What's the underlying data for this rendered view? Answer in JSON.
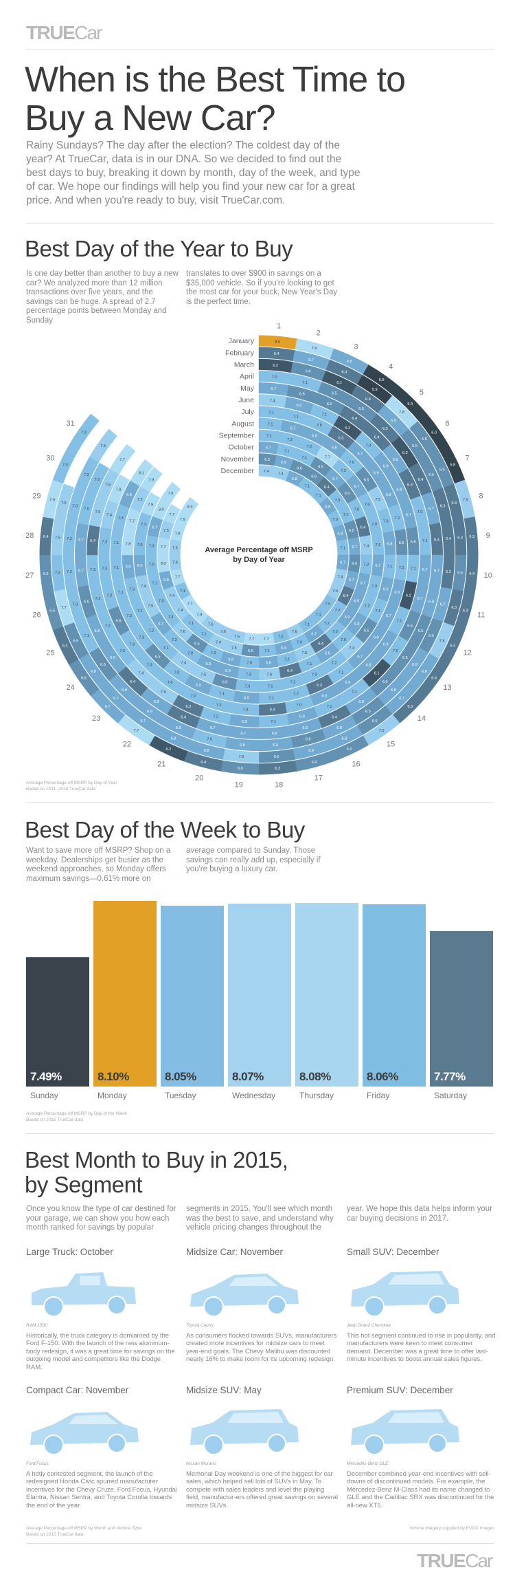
{
  "header": {
    "logo_bold": "TRUE",
    "logo_light": "Car",
    "title_line1": "When is the Best Time to",
    "title_line2": "Buy a New Car?",
    "intro": "Rainy Sundays? The day after the election? The coldest day of the year? At TrueCar, data is in our DNA. So we decided to find out the best days to buy, breaking it down by month, day of the week, and type of car. We hope our findings will help you find your new car for a great price. And when you're ready to buy, visit TrueCar.com."
  },
  "year_section": {
    "heading": "Best Day of the Year to Buy",
    "col1": "Is one day better than another to buy a new car? We analyzed more than 12 million transactions over five years, and the savings can be huge. A spread of 2.7 percentage points between Monday and Sunday",
    "col2": "translates to over $900 in savings on a $35,000 vehicle. So if you're looking to get the most car for your buck, New Year's Day is the perfect time.",
    "footnote1": "Average Percentage off MSRP by Day of Year",
    "footnote2": "Based on 2011–2015 TrueCar data"
  },
  "week_section": {
    "heading": "Best Day of the Week to Buy",
    "col1": "Want to save more off MSRP? Shop on a weekday. Dealerships get busier as the weekend approaches, so Monday offers maximum savings—0.61% more on",
    "col2": "average compared to Sunday. Those savings can really add up, especially if you're buying a luxury car.",
    "footnote1": "Average Percentage off MSRP by Day of the Week",
    "footnote2": "Based on 2015 TrueCar data"
  },
  "chart_data": [
    {
      "type": "heatmap",
      "layout": "radial",
      "title_line1": "Average Percentage off MSRP",
      "title_line2": "by Day of Year",
      "days": [
        1,
        2,
        3,
        4,
        5,
        6,
        7,
        8,
        9,
        10,
        11,
        12,
        13,
        14,
        15,
        16,
        17,
        18,
        19,
        20,
        21,
        22,
        23,
        24,
        25,
        26,
        27,
        28,
        29,
        30,
        31
      ],
      "months": [
        {
          "name": "January",
          "values": [
            8.5,
            7.9,
            6.8,
            5.9,
            5.9,
            6.0,
            5.8,
            7.5,
            6.3,
            6.4,
            6.3,
            6.3,
            6.4,
            6.3,
            7.5,
            6.5,
            6.6,
            6.3,
            6.6,
            6.4,
            6.2,
            7.7,
            6.7,
            6.6,
            6.4,
            6.5,
            6.6,
            6.4,
            7.9,
            7.0,
            7.3
          ]
        },
        {
          "name": "February",
          "values": [
            6.4,
            6.7,
            6.4,
            5.9,
            7.8,
            6.5,
            6.5,
            6.3,
            6.3,
            6.6,
            6.3,
            7.5,
            6.8,
            6.7,
            6.6,
            6.8,
            6.8,
            6.6,
            7.6,
            6.8,
            6.8,
            6.7,
            6.7,
            6.8,
            6.6,
            7.7,
            7.2,
            7.5,
            7.6
          ]
        },
        {
          "name": "March",
          "values": [
            6.2,
            6.6,
            6.1,
            6.4,
            6.9,
            6.5,
            6.5,
            6.3,
            6.4,
            6.3,
            6.7,
            6.5,
            6.9,
            6.8,
            6.5,
            6.8,
            6.6,
            6.9,
            6.8,
            7.0,
            6.9,
            6.8,
            6.8,
            6.6,
            7.1,
            7.0,
            7.2,
            7.2,
            7.0,
            7.2,
            7.5
          ]
        },
        {
          "name": "April",
          "values": [
            7.0,
            7.1,
            6.5,
            6.5,
            6.3,
            6.2,
            6.4,
            6.7,
            6.4,
            6.7,
            6.8,
            6.5,
            6.5,
            6.5,
            6.8,
            6.4,
            6.8,
            6.8,
            6.7,
            6.7,
            6.4,
            6.8,
            6.4,
            6.9,
            6.8,
            6.6,
            6.7,
            6.7,
            7.0,
            7.0
          ]
        },
        {
          "name": "May",
          "values": [
            6.7,
            6.6,
            6.5,
            6.4,
            6.4,
            6.9,
            6.3,
            7.0,
            7.1,
            6.7,
            6.7,
            6.6,
            7.0,
            6.1,
            7.1,
            7.1,
            6.9,
            7.1,
            6.8,
            7.2,
            6.3,
            7.5,
            7.4,
            7.3,
            7.2,
            7.2,
            7.3,
            6.4,
            7.5,
            7.6,
            7.7
          ]
        },
        {
          "name": "June",
          "values": [
            7.4,
            6.8,
            7.1,
            6.2,
            7.0,
            6.9,
            6.8,
            6.7,
            6.6,
            7.1,
            6.2,
            7.1,
            6.9,
            6.8,
            6.9,
            6.9,
            7.0,
            6.4,
            7.3,
            7.2,
            7.0,
            7.0,
            7.0,
            7.3,
            6.6,
            7.3,
            7.3,
            7.3,
            7.4,
            7.8
          ]
        },
        {
          "name": "July",
          "values": [
            7.1,
            7.1,
            7.0,
            6.3,
            6.7,
            6.9,
            6.8,
            7.2,
            6.5,
            7.0,
            6.9,
            6.7,
            6.8,
            6.7,
            7.1,
            6.3,
            7.2,
            7.1,
            6.9,
            7.1,
            6.9,
            7.0,
            6.5,
            7.3,
            7.3,
            7.1,
            7.1,
            7.1,
            7.3,
            6.9,
            8.1
          ]
        },
        {
          "name": "August",
          "values": [
            7.1,
            6.7,
            6.9,
            6.8,
            7.0,
            6.5,
            7.5,
            7.3,
            6.8,
            7.1,
            6.9,
            7.1,
            6.5,
            7.4,
            7.2,
            7.0,
            7.2,
            7.1,
            7.3,
            6.6,
            7.5,
            7.4,
            7.1,
            7.2,
            7.1,
            7.3,
            6.9,
            7.8,
            7.7,
            7.5,
            7.9
          ]
        },
        {
          "name": "September",
          "values": [
            7.1,
            7.2,
            7.0,
            7.7,
            7.2,
            6.7,
            7.0,
            7.0,
            7.1,
            6.7,
            7.3,
            7.2,
            6.8,
            7.0,
            6.8,
            7.1,
            6.4,
            7.6,
            7.3,
            6.9,
            6.9,
            7.0,
            7.3,
            6.7,
            7.5,
            7.4,
            6.9,
            7.0,
            7.3,
            7.9
          ]
        },
        {
          "name": "October",
          "values": [
            6.7,
            7.1,
            7.1,
            6.5,
            6.7,
            6.6,
            7.0,
            6.4,
            7.4,
            7.2,
            6.7,
            6.9,
            6.9,
            7.0,
            6.4,
            7.6,
            7.2,
            6.8,
            7.0,
            6.9,
            7.2,
            6.5,
            7.6,
            7.3,
            7.0,
            7.1,
            7.0,
            7.3,
            6.7,
            8.0,
            7.9
          ]
        },
        {
          "name": "November",
          "values": [
            6.5,
            6.9,
            6.6,
            6.6,
            6.4,
            7.0,
            7.1,
            6.5,
            6.7,
            6.6,
            6.7,
            6.4,
            7.2,
            7.2,
            6.7,
            7.0,
            6.9,
            7.1,
            6.6,
            7.5,
            7.4,
            7.1,
            7.1,
            7.4,
            7.4,
            6.8,
            8.0,
            7.7,
            7.5,
            7.7
          ]
        },
        {
          "name": "December",
          "values": [
            7.4,
            7.4,
            6.8,
            7.1,
            7.1,
            6.8,
            7.0,
            6.9,
            7.1,
            6.7,
            7.4,
            7.4,
            7.0,
            7.1,
            7.1,
            7.6,
            7.0,
            7.7,
            7.7,
            7.5,
            7.6,
            7.6,
            7.9,
            7.7,
            7.1,
            7.7,
            7.6,
            7.5,
            7.8,
            7.9,
            8.3
          ]
        }
      ],
      "colors": {
        "highlight": "#e3a027",
        "scale": [
          "#34444f",
          "#3f5869",
          "#567a93",
          "#6391b2",
          "#73aad2",
          "#84c0e6",
          "#98cdee",
          "#acdcf4"
        ]
      }
    },
    {
      "type": "bar",
      "categories": [
        "Sunday",
        "Monday",
        "Tuesday",
        "Wednesday",
        "Thursday",
        "Friday",
        "Saturday"
      ],
      "values": [
        7.49,
        8.1,
        8.05,
        8.07,
        8.08,
        8.06,
        7.77
      ],
      "labels": [
        "7.49%",
        "8.10%",
        "8.05%",
        "8.07%",
        "8.08%",
        "8.06%",
        "7.77%"
      ],
      "colors": [
        "#3a434b",
        "#e3a027",
        "#83bde3",
        "#a3d3ef",
        "#a8d5ef",
        "#80bde3",
        "#5a7a90"
      ],
      "xlabel": "",
      "ylabel": ""
    }
  ],
  "month_section": {
    "heading_line1": "Best Month to Buy in 2015,",
    "heading_line2": "by Segment",
    "col1": "Once you know the type of car destined for your garage, we can show you how each month ranked for savings by popular",
    "col2": "segments in 2015. You'll see which month was the best to save, and understand why vehicle pricing changes throughout the",
    "col3": "year. We hope this data helps inform your car buying decisions in 2017.",
    "segments": [
      {
        "title": "Large Truck: October",
        "vehicle": "RAM 1500",
        "icon": "truck",
        "text": "Historically, the truck category is domianted by the Ford F-150. With the launch of the new aluminum-body redesign, it was a great time for savings on the outgoing model and competitors like the Dodge RAM."
      },
      {
        "title": "Midsize Car: November",
        "vehicle": "Toyota Camry",
        "icon": "sedan",
        "text": "As consumers flocked towards SUVs, manufacturers created more incentives for midsize cars to meet year-end goals. The Chevy Malibu was discounted nearly 16% to make room for its upcoming redesign."
      },
      {
        "title": "Small SUV: December",
        "vehicle": "Jeep Grand Cherokee",
        "icon": "suv",
        "text": "This hot segment continued to rise in popularity, and manufacturers were keen to meet consumer demand. December was a great time to offer last-minute incentives to boost annual sales figures."
      },
      {
        "title": "Compact Car: November",
        "vehicle": "Ford Focus",
        "icon": "sedan",
        "text": "A hotly contested segment, the launch of the redesigned Honda Civic spurred manufacturer incentives for the Chevy Cruze, Ford Focus, Hyundai Elantra, Nissan Sentra, and Toyota Corolla towards the end of the year."
      },
      {
        "title": "Midsize SUV: May",
        "vehicle": "Nissan Murano",
        "icon": "suv",
        "text": "Memorial Day weekend is one of the biggest for car sales, which helped sell lots of SUVs in May. To compete with sales leaders and level the playing field, manufactur-ers offered great savings on several midsize SUVs."
      },
      {
        "title": "Premium SUV: December",
        "vehicle": "Mercedes-Benz GLE",
        "icon": "suv",
        "text": "December combined year-end incentives with sell-downs of discontinued models. For example, the Mercedez-Benz M-Class had its name changed to GLE and the Cadillac SRX was discontinued for the all-new XT5."
      }
    ],
    "footnote1": "Average Percentage off MSRP by Month and Vehicle Type",
    "footnote2": "Based on 2015 TrueCar data",
    "credit": "Vehicle imagery supplied by EVOX Images"
  },
  "footer": {
    "logo_bold": "TRUE",
    "logo_light": "Car"
  },
  "colors": {
    "car_tint": "#b6dcf3",
    "text": "#8a8a8a",
    "heading": "#3b3b3b"
  }
}
